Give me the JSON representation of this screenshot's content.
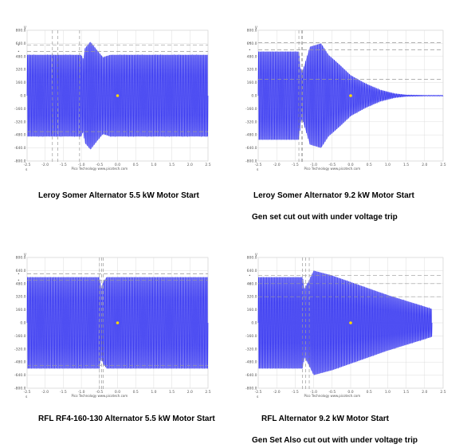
{
  "captions": {
    "c1": "Leroy Somer Alternator 5.5 kW Motor Start",
    "c2": "Leroy Somer Alternator 9.2 kW Motor Start",
    "c3": "Gen set cut out with under voltage trip",
    "c4": "RFL RF4-160-130 Alternator 5.5 kW Motor Start",
    "c5": "RFL Alternator 9.2 kW Motor Start",
    "c6": "Gen Set Also cut out with under voltage trip"
  },
  "colors": {
    "wave": "#2f2ff2",
    "envelope": "#7777f0",
    "grid": "#dddddd",
    "dash": "#999999",
    "marker": "#ffd900"
  },
  "chart_data": [
    {
      "type": "line",
      "credit": "Pico Technology  www.picotech.com",
      "units": {
        "y": "V",
        "x": "s"
      },
      "ylim": [
        -800,
        800
      ],
      "xlim": [
        -2.5,
        2.5
      ],
      "yticks": [
        "800.0",
        "640.0",
        "480.0",
        "320.0",
        "160.0",
        "0.0",
        "-160.0",
        "-320.0",
        "-480.0",
        "-640.0",
        "-800.0"
      ],
      "xticks": [
        "-2.5",
        "-2.0",
        "-1.5",
        "-1.0",
        "-0.5",
        "0.0",
        "0.5",
        "1.0",
        "1.5",
        "2.0",
        "2.5"
      ],
      "x_end": 2.5,
      "envelope": {
        "x": [
          -2.5,
          -1.0,
          -0.95,
          -0.9,
          -0.75,
          -0.5,
          -0.4,
          -0.2,
          0.0,
          2.5
        ],
        "y": [
          500,
          500,
          440,
          580,
          660,
          520,
          470,
          500,
          500,
          500
        ]
      },
      "markers": {
        "dashed_x": [
          -1.8,
          -1.65,
          -1.05
        ],
        "dashed_y": [
          620,
          540,
          -440
        ]
      }
    },
    {
      "type": "line",
      "credit": "Pico Technology  www.picotech.com",
      "units": {
        "y": "V",
        "x": "s"
      },
      "ylim": [
        -800,
        800
      ],
      "xlim": [
        -2.5,
        2.5
      ],
      "yticks": [
        "800.0",
        "640.0",
        "480.0",
        "320.0",
        "160.0",
        "0.0",
        "-160.0",
        "-320.0",
        "-480.0",
        "-640.0",
        "-800.0"
      ],
      "xticks": [
        "-2.5",
        "-2.0",
        "-1.5",
        "-1.0",
        "-0.5",
        "0.0",
        "0.5",
        "1.0",
        "1.5",
        "2.0",
        "2.5"
      ],
      "x_end": 2.5,
      "envelope": {
        "x": [
          -2.5,
          -1.4,
          -1.35,
          -1.3,
          -1.1,
          -0.8,
          -0.6,
          -0.3,
          0.0,
          0.4,
          0.8,
          1.2,
          1.5,
          2.0,
          2.5
        ],
        "y": [
          540,
          540,
          320,
          300,
          600,
          640,
          500,
          380,
          250,
          150,
          70,
          25,
          10,
          5,
          5
        ]
      },
      "markers": {
        "dashed_x": [
          -1.4,
          -1.33,
          -1.3
        ],
        "dashed_y": [
          650,
          560,
          200
        ]
      }
    },
    {
      "type": "line",
      "credit": "Pico Technology  www.picotech.com",
      "units": {
        "y": "V",
        "x": "s"
      },
      "ylim": [
        -800,
        800
      ],
      "xlim": [
        -2.5,
        2.5
      ],
      "yticks": [
        "800.0",
        "640.0",
        "480.0",
        "320.0",
        "160.0",
        "0.0",
        "-160.0",
        "-320.0",
        "-480.0",
        "-640.0",
        "-800.0"
      ],
      "xticks": [
        "-2.5",
        "-2.0",
        "-1.5",
        "-1.0",
        "-0.5",
        "0.0",
        "0.5",
        "1.0",
        "1.5",
        "2.0",
        "2.5"
      ],
      "x_end": 2.5,
      "envelope": {
        "x": [
          -2.5,
          -0.5,
          -0.45,
          -0.4,
          -0.3,
          -0.2,
          0.0,
          2.5
        ],
        "y": [
          560,
          560,
          420,
          500,
          560,
          560,
          560,
          560
        ]
      },
      "markers": {
        "dashed_x": [
          -0.5,
          -0.44,
          -0.4
        ],
        "dashed_y": [
          600,
          520,
          -520
        ]
      }
    },
    {
      "type": "line",
      "credit": "Pico Technology  www.picotech.com",
      "units": {
        "y": "V",
        "x": "s"
      },
      "ylim": [
        -800,
        800
      ],
      "xlim": [
        -2.5,
        2.5
      ],
      "yticks": [
        "800.0",
        "640.0",
        "480.0",
        "320.0",
        "160.0",
        "0.0",
        "-160.0",
        "-320.0",
        "-480.0",
        "-640.0",
        "-800.0"
      ],
      "xticks": [
        "-2.5",
        "-2.0",
        "-1.5",
        "-1.0",
        "-0.5",
        "0.0",
        "0.5",
        "1.0",
        "1.5",
        "2.0",
        "2.5"
      ],
      "x_end": 2.2,
      "envelope": {
        "x": [
          -2.5,
          -1.3,
          -1.25,
          -1.15,
          -1.0,
          -0.5,
          0.0,
          0.5,
          1.0,
          1.5,
          2.0,
          2.2
        ],
        "y": [
          560,
          560,
          420,
          500,
          640,
          580,
          500,
          420,
          340,
          270,
          200,
          170
        ]
      },
      "markers": {
        "dashed_x": [
          -1.3,
          -1.22,
          -1.12
        ],
        "dashed_y": [
          580,
          480,
          320
        ]
      }
    }
  ]
}
